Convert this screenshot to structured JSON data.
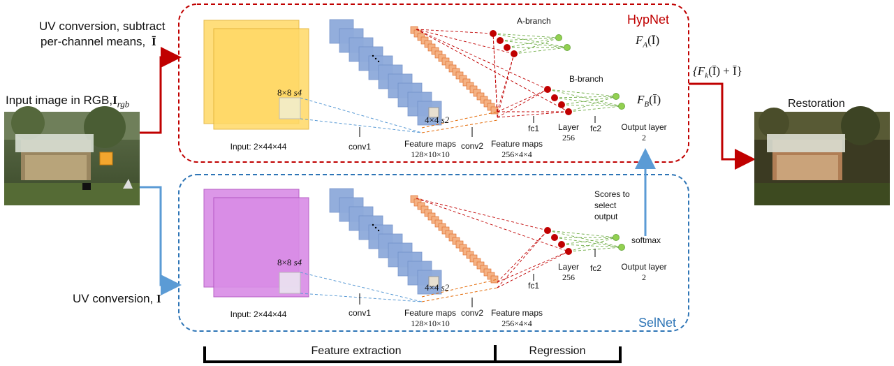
{
  "left_panel": {
    "hyp_input_caption_line1": "UV conversion, subtract",
    "hyp_input_caption_line2": "per-channel means,",
    "hyp_input_symbol": "Ī",
    "input_image_label": "Input image in RGB,",
    "input_image_symbol": "I",
    "input_image_subscript": "rgb",
    "sel_input_caption": "UV conversion,",
    "sel_input_symbol": "I"
  },
  "hypnet": {
    "title": "HypNet",
    "input_label": "Input: 2×44×44",
    "kernel1": "8×8",
    "stride1": "s4",
    "conv1": "conv1",
    "kernel2": "4×4",
    "stride2": "s2",
    "fm1_label": "Feature maps",
    "fm1_dims": "128×10×10",
    "conv2": "conv2",
    "fm2_label": "Feature maps",
    "fm2_dims": "256×4×4",
    "a_branch": "A-branch",
    "b_branch": "B-branch",
    "fc1": "fc1",
    "layer_label": "Layer",
    "layer_units": "256",
    "fc2": "fc2",
    "output_layer": "Output layer",
    "output_units": "2",
    "fa": "F",
    "fa_sub": "A",
    "fa_arg": "(Ī)",
    "fb": "F",
    "fb_sub": "B",
    "fb_arg": "(Ī)",
    "out_expr_open": "{F",
    "out_expr_sub": "k",
    "out_expr_rest": "(Ī) + Ī}"
  },
  "selnet": {
    "title": "SelNet",
    "input_label": "Input: 2×44×44",
    "kernel1": "8×8",
    "stride1": "s4",
    "conv1": "conv1",
    "kernel2": "4×4",
    "stride2": "s2",
    "fm1_label": "Feature maps",
    "fm1_dims": "128×10×10",
    "conv2": "conv2",
    "fm2_label": "Feature maps",
    "fm2_dims": "256×4×4",
    "fc1": "fc1",
    "layer_label": "Layer",
    "layer_units": "256",
    "fc2": "fc2",
    "output_layer": "Output layer",
    "output_units": "2",
    "softmax": "softmax",
    "scores_line1": "Scores to",
    "scores_line2": "select",
    "scores_line3": "output"
  },
  "restoration_label": "Restoration",
  "stages": {
    "feature_extraction": "Feature extraction",
    "regression": "Regression"
  },
  "colors": {
    "hypnet_border": "#c00000",
    "selnet_border": "#2e75b6",
    "hyp_arrow": "#c00000",
    "sel_arrow": "#5b9bd5",
    "hyp_input": "#ffd966",
    "sel_input": "#d98ce6",
    "conv_blue": "#8eaadb",
    "feature_orange": "#f4b183",
    "node_red": "#c00000",
    "node_green": "#92d050"
  }
}
